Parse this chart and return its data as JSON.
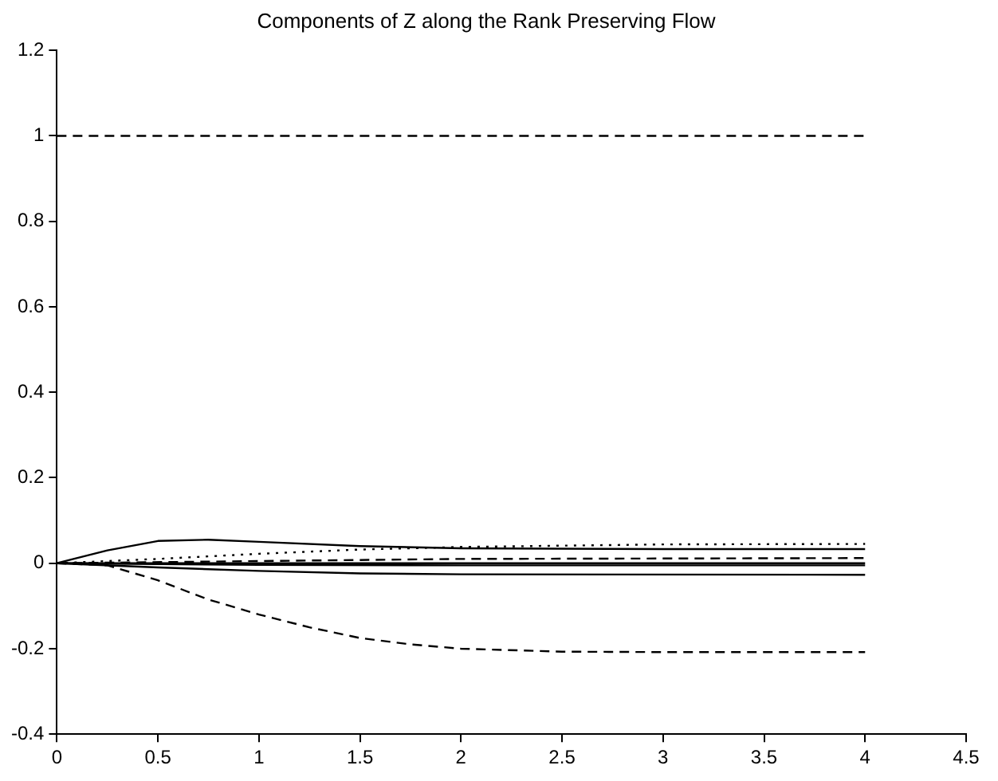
{
  "chart_data": {
    "type": "line",
    "title": "Components of Z along the Rank Preserving Flow",
    "xlim": [
      0,
      4.5
    ],
    "xticks": [
      0,
      0.5,
      1,
      1.5,
      2,
      2.5,
      3,
      3.5,
      4,
      4.5
    ],
    "ylim": [
      -0.4,
      1.2
    ],
    "yticks": [
      -0.4,
      -0.2,
      0,
      0.2,
      0.4,
      0.6,
      0.8,
      1,
      1.2
    ],
    "grid": false,
    "legend": false,
    "marker": "none",
    "series": [
      {
        "color": "#000000",
        "line_style": "dashed",
        "x": [
          0,
          1,
          2,
          3,
          4
        ],
        "values": [
          1,
          1,
          1,
          1,
          1
        ]
      },
      {
        "color": "#000000",
        "line_style": "dashed",
        "x": [
          0,
          0.25,
          0.5,
          0.75,
          1,
          1.25,
          1.5,
          1.75,
          2,
          2.5,
          3,
          4
        ],
        "values": [
          0,
          -0.005,
          -0.04,
          -0.085,
          -0.12,
          -0.15,
          -0.175,
          -0.19,
          -0.2,
          -0.207,
          -0.208,
          -0.208
        ]
      },
      {
        "color": "#000000",
        "line_style": "solid",
        "x": [
          0,
          0.25,
          0.5,
          0.75,
          1,
          1.5,
          2,
          3,
          4
        ],
        "values": [
          0,
          0.03,
          0.052,
          0.055,
          0.05,
          0.04,
          0.035,
          0.033,
          0.033
        ]
      },
      {
        "color": "#000000",
        "line_style": "dotted",
        "x": [
          0,
          0.5,
          1,
          1.5,
          2,
          3,
          4
        ],
        "values": [
          0,
          0.01,
          0.022,
          0.032,
          0.038,
          0.044,
          0.045
        ]
      },
      {
        "color": "#000000",
        "line_style": "dashed",
        "x": [
          0,
          1,
          2,
          4
        ],
        "values": [
          0,
          0.005,
          0.01,
          0.012
        ]
      },
      {
        "color": "#000000",
        "line_style": "solid",
        "x": [
          0,
          2,
          4
        ],
        "values": [
          0,
          0,
          0
        ]
      },
      {
        "color": "#000000",
        "line_style": "solid",
        "x": [
          0,
          1,
          2,
          4
        ],
        "values": [
          0,
          -0.004,
          -0.005,
          -0.005
        ]
      },
      {
        "color": "#000000",
        "line_style": "solid",
        "x": [
          0,
          0.5,
          1,
          1.5,
          2,
          4
        ],
        "values": [
          0,
          -0.01,
          -0.018,
          -0.024,
          -0.026,
          -0.027
        ]
      }
    ]
  }
}
